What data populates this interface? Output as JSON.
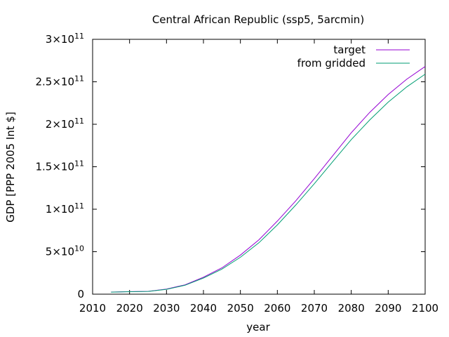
{
  "chart_data": {
    "type": "line",
    "title": "Central African Republic (ssp5, 5arcmin)",
    "xlabel": "year",
    "ylabel": "GDP [PPP 2005 Int $]",
    "xlim": [
      2010,
      2100
    ],
    "ylim": [
      0,
      300000000000
    ],
    "x_ticks": [
      {
        "value": 2010,
        "label": "2010"
      },
      {
        "value": 2020,
        "label": "2020"
      },
      {
        "value": 2030,
        "label": "2030"
      },
      {
        "value": 2040,
        "label": "2040"
      },
      {
        "value": 2050,
        "label": "2050"
      },
      {
        "value": 2060,
        "label": "2060"
      },
      {
        "value": 2070,
        "label": "2070"
      },
      {
        "value": 2080,
        "label": "2080"
      },
      {
        "value": 2090,
        "label": "2090"
      },
      {
        "value": 2100,
        "label": "2100"
      }
    ],
    "y_ticks": [
      {
        "value": 0,
        "mantissa": "0",
        "exponent": ""
      },
      {
        "value": 50000000000,
        "mantissa": "5×10",
        "exponent": "10"
      },
      {
        "value": 100000000000,
        "mantissa": "1×10",
        "exponent": "11"
      },
      {
        "value": 150000000000,
        "mantissa": "1.5×10",
        "exponent": "11"
      },
      {
        "value": 200000000000,
        "mantissa": "2×10",
        "exponent": "11"
      },
      {
        "value": 250000000000,
        "mantissa": "2.5×10",
        "exponent": "11"
      },
      {
        "value": 300000000000,
        "mantissa": "3×10",
        "exponent": "11"
      }
    ],
    "legend_position": "top-right",
    "grid": false,
    "x": [
      2015,
      2020,
      2025,
      2030,
      2035,
      2040,
      2045,
      2050,
      2055,
      2060,
      2065,
      2070,
      2075,
      2080,
      2085,
      2090,
      2095,
      2100
    ],
    "series": [
      {
        "name": "target",
        "color": "#9400d3",
        "values": [
          2500000000,
          3000000000,
          3300000000,
          6000000000,
          11000000000,
          20000000000,
          31000000000,
          46000000000,
          64000000000,
          86000000000,
          110000000000,
          136000000000,
          163000000000,
          190000000000,
          214000000000,
          235000000000,
          253000000000,
          268000000000
        ]
      },
      {
        "name": "from gridded",
        "color": "#009e73",
        "values": [
          2400000000,
          2900000000,
          3200000000,
          5700000000,
          10500000000,
          19000000000,
          29500000000,
          43500000000,
          60500000000,
          81500000000,
          105000000000,
          130000000000,
          156000000000,
          182000000000,
          205000000000,
          226000000000,
          244000000000,
          259000000000
        ]
      }
    ]
  }
}
